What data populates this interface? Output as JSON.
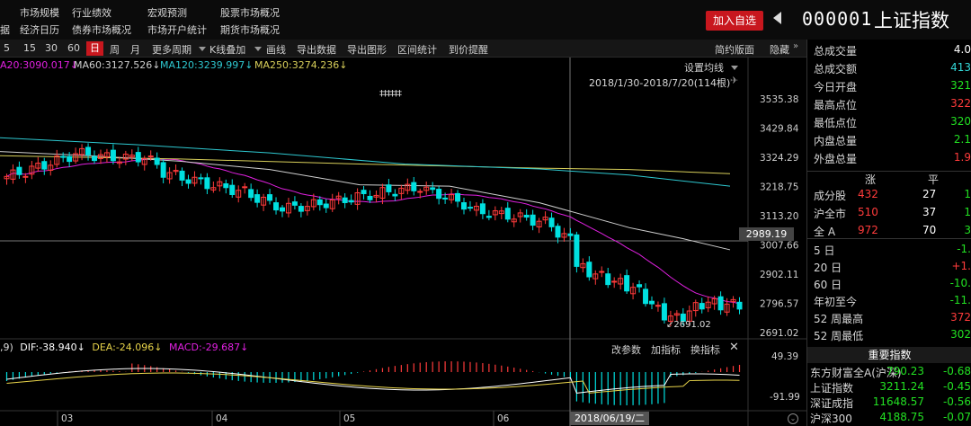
{
  "menu": {
    "row1": [
      "市场规模",
      "行业绩效",
      "宏观预测",
      "股票市场概况"
    ],
    "row2": [
      "据",
      "经济日历",
      "债券市场概况",
      "市场开户统计",
      "期货市场概况"
    ]
  },
  "header": {
    "add_btn": "加入自选",
    "code": "000001",
    "name": "上证指数"
  },
  "toolbar": {
    "periods": [
      "5",
      "15",
      "30",
      "60",
      "日",
      "周",
      "月"
    ],
    "active_period": "日",
    "more_period": "更多周期",
    "k_overlay": "K线叠加",
    "tools": [
      "画线",
      "导出数据",
      "导出图形",
      "区间统计",
      "到价提醒"
    ],
    "simple": "简约版面",
    "hide": "隐藏"
  },
  "ma": {
    "ma20": "A20:3090.017↓",
    "ma60": "MA60:3127.526↓",
    "ma120": "MA120:3239.997↓",
    "ma250": "MA250:3274.236↓",
    "settings": "设置均线",
    "range": "2018/1/30-2018/7/20(114根)"
  },
  "chart": {
    "y_ticks": [
      "3535.38",
      "3429.84",
      "3324.29",
      "3218.75",
      "3113.20",
      "3007.66",
      "2902.11",
      "2796.57",
      "2691.02"
    ],
    "price_tag": "2989.19",
    "low_label": "2691.02",
    "marker": "‡‡‡‡‡‡",
    "x_labels": [
      "03",
      "04",
      "05",
      "06"
    ],
    "date_tag": "2018/06/19/二",
    "colors": {
      "up": "#ff3b3b",
      "down": "#00e0e0",
      "ma20": "#e020e0",
      "ma60": "#cfcfcf",
      "ma120": "#2ec8d0",
      "ma250": "#d8cf5a"
    }
  },
  "macd": {
    "label_prefix": ",9)",
    "dif": "DIF:-38.940↓",
    "dea": "DEA:-24.096↓",
    "macd": "MACD:-29.687↓",
    "btn_params": "改参数",
    "btn_add": "加指标",
    "btn_switch": "换指标",
    "y_top": "49.39",
    "y_bottom": "-91.99"
  },
  "panel": {
    "stats": [
      {
        "label": "总成交量",
        "value": "4.0",
        "color": "white"
      },
      {
        "label": "总成交额",
        "value": "413",
        "color": "cyan"
      },
      {
        "label": "今日开盘",
        "value": "321",
        "color": "green"
      },
      {
        "label": "最高点位",
        "value": "322",
        "color": "red"
      },
      {
        "label": "最低点位",
        "value": "320",
        "color": "green"
      },
      {
        "label": "内盘总量",
        "value": "2.1",
        "color": "green"
      },
      {
        "label": "外盘总量",
        "value": "1.9",
        "color": "red"
      }
    ],
    "breadth_head": [
      "涨",
      "平"
    ],
    "breadth": [
      {
        "label": "成分股",
        "up": "432",
        "flat": "27",
        "down": "1"
      },
      {
        "label": "沪全市",
        "up": "510",
        "flat": "37",
        "down": "1"
      },
      {
        "label": "全 A",
        "up": "972",
        "flat": "70",
        "down": "3"
      }
    ],
    "perf": [
      {
        "label": "5 日",
        "value": "-1.",
        "color": "green"
      },
      {
        "label": "20 日",
        "value": "+1.",
        "color": "red"
      },
      {
        "label": "60 日",
        "value": "-10.",
        "color": "green"
      },
      {
        "label": "年初至今",
        "value": "-11.",
        "color": "green"
      },
      {
        "label": "52 周最高",
        "value": "372",
        "color": "red"
      },
      {
        "label": "52 周最低",
        "value": "302",
        "color": "green"
      }
    ],
    "indices_title": "重要指数",
    "indices": [
      {
        "name": "东方财富全A(沪深)",
        "price": "790.23",
        "chg": "-0.68"
      },
      {
        "name": "上证指数",
        "price": "3211.24",
        "chg": "-0.45"
      },
      {
        "name": "深证成指",
        "price": "11648.57",
        "chg": "-0.56"
      },
      {
        "name": "沪深300",
        "price": "4188.75",
        "chg": "-0.07"
      }
    ]
  }
}
